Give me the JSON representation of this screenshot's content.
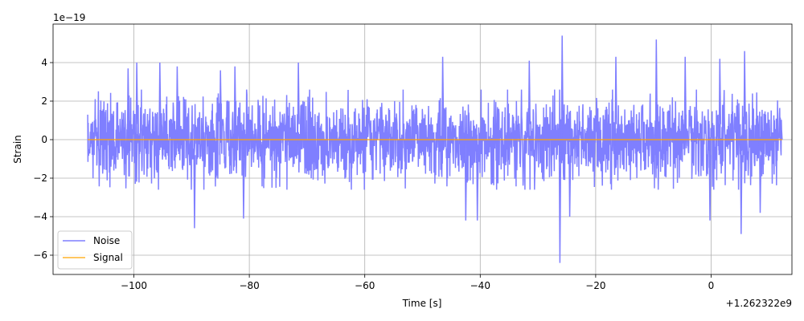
{
  "chart_data": {
    "type": "line",
    "xlabel": "Time [s]",
    "ylabel": "Strain",
    "x_offset_label": "+1.262322e9",
    "y_scale_label": "1e−19",
    "xlim": [
      -114,
      14
    ],
    "ylim": [
      -7.0,
      6.0
    ],
    "x_ticks": [
      -100,
      -80,
      -60,
      -40,
      -20,
      0
    ],
    "x_tick_labels": [
      "−100",
      "−80",
      "−60",
      "−40",
      "−20",
      "0"
    ],
    "y_ticks": [
      -6,
      -4,
      -2,
      0,
      2,
      4
    ],
    "y_tick_labels": [
      "−6",
      "−4",
      "−2",
      "0",
      "2",
      "4"
    ],
    "grid": true,
    "legend_position": "lower-left",
    "series": [
      {
        "name": "Noise",
        "color": "#7f7fff",
        "x_range": [
          -108,
          12.3
        ],
        "envelope_typical": [
          -2.0,
          2.0
        ],
        "peaks": [
          {
            "x": -101,
            "y": 3.7
          },
          {
            "x": -99.5,
            "y": 4.0
          },
          {
            "x": -95.5,
            "y": 4.0
          },
          {
            "x": -92.5,
            "y": 3.8
          },
          {
            "x": -89.5,
            "y": -4.6
          },
          {
            "x": -85,
            "y": 3.6
          },
          {
            "x": -82.5,
            "y": 3.8
          },
          {
            "x": -81,
            "y": -4.1
          },
          {
            "x": -71.5,
            "y": 4.0
          },
          {
            "x": -46.5,
            "y": 4.3
          },
          {
            "x": -42.5,
            "y": -4.2
          },
          {
            "x": -40.5,
            "y": -4.2
          },
          {
            "x": -31.5,
            "y": 4.1
          },
          {
            "x": -26.2,
            "y": -6.4
          },
          {
            "x": -25.8,
            "y": 5.4
          },
          {
            "x": -24.5,
            "y": -4.0
          },
          {
            "x": -16.5,
            "y": 4.3
          },
          {
            "x": -9.5,
            "y": 5.2
          },
          {
            "x": -4.5,
            "y": 4.3
          },
          {
            "x": -0.2,
            "y": -4.2
          },
          {
            "x": 1.5,
            "y": 4.2
          },
          {
            "x": 5.2,
            "y": -4.9
          },
          {
            "x": 5.8,
            "y": 4.6
          },
          {
            "x": 8.5,
            "y": -3.8
          }
        ]
      },
      {
        "name": "Signal",
        "color": "#ffa500",
        "x_range": [
          -108,
          12.3
        ],
        "value": 0
      }
    ]
  }
}
